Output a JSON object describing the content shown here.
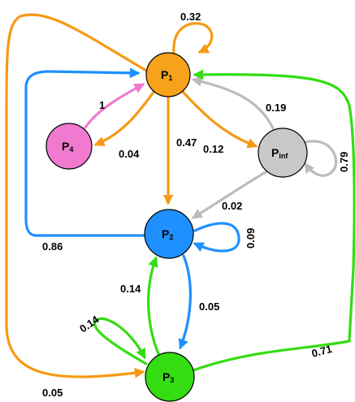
{
  "nodes": [
    {
      "id": "P1",
      "base": "P",
      "sub": "1",
      "color": "#F7A21B"
    },
    {
      "id": "P2",
      "base": "P",
      "sub": "2",
      "color": "#1E90FF"
    },
    {
      "id": "P3",
      "base": "P",
      "sub": "3",
      "color": "#33DD11"
    },
    {
      "id": "P4",
      "base": "P",
      "sub": "4",
      "color": "#F07ACF"
    },
    {
      "id": "Pinf",
      "base": "P",
      "sub": "inf",
      "color": "#C8C8C8"
    }
  ],
  "edges": [
    {
      "from": "P1",
      "to": "P1",
      "label": "0.32",
      "color": "#F59A14"
    },
    {
      "from": "P1",
      "to": "P2",
      "label": "0.47",
      "color": "#F59A14"
    },
    {
      "from": "P1",
      "to": "P4",
      "label": "0.04",
      "color": "#F59A14"
    },
    {
      "from": "P1",
      "to": "Pinf",
      "label": "0.12",
      "color": "#F59A14"
    },
    {
      "from": "P1",
      "to": "P3",
      "label": "0.05",
      "color": "#F59A14"
    },
    {
      "from": "P4",
      "to": "P1",
      "label": "1",
      "color": "#F07ACF"
    },
    {
      "from": "Pinf",
      "to": "P1",
      "label": "0.19",
      "color": "#BBBBBB"
    },
    {
      "from": "Pinf",
      "to": "Pinf",
      "label": "0.79",
      "color": "#BBBBBB"
    },
    {
      "from": "Pinf",
      "to": "P2",
      "label": "0.02",
      "color": "#BBBBBB"
    },
    {
      "from": "P2",
      "to": "P2",
      "label": "0.09",
      "color": "#1E90FF"
    },
    {
      "from": "P2",
      "to": "P1",
      "label": "0.86",
      "color": "#1E90FF"
    },
    {
      "from": "P2",
      "to": "P3",
      "label": "0.05",
      "color": "#1E90FF"
    },
    {
      "from": "P3",
      "to": "P2",
      "label": "0.14",
      "color": "#33DD11"
    },
    {
      "from": "P3",
      "to": "P3",
      "label": "0.14",
      "color": "#33DD11"
    },
    {
      "from": "P3",
      "to": "P1",
      "label": "0.71",
      "color": "#33DD11"
    }
  ]
}
